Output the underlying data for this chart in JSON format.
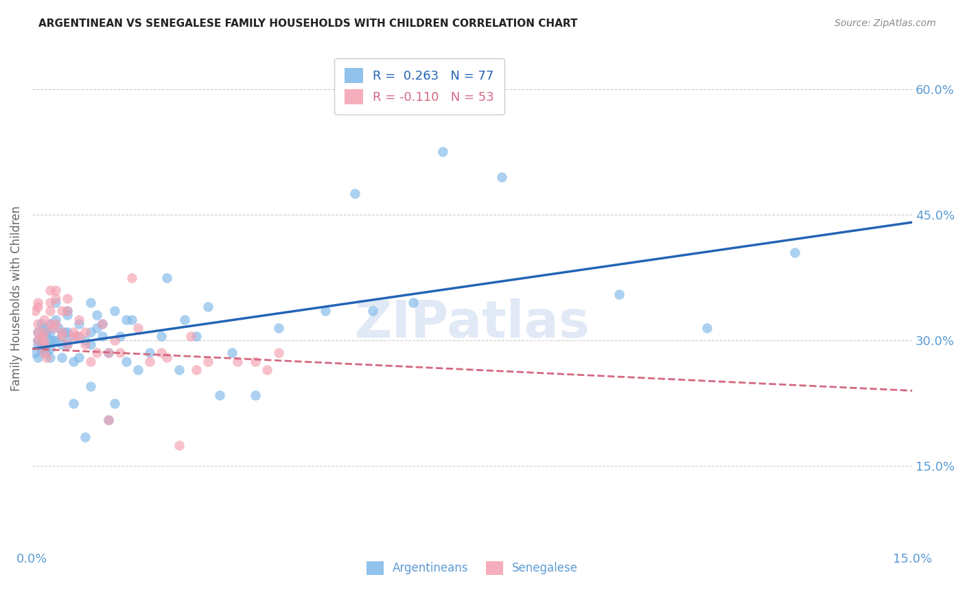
{
  "title": "ARGENTINEAN VS SENEGALESE FAMILY HOUSEHOLDS WITH CHILDREN CORRELATION CHART",
  "source": "Source: ZipAtlas.com",
  "ylabel": "Family Households with Children",
  "right_yticks": [
    "60.0%",
    "45.0%",
    "30.0%",
    "15.0%"
  ],
  "right_ytick_vals": [
    0.6,
    0.45,
    0.3,
    0.15
  ],
  "xmin": 0.0,
  "xmax": 0.15,
  "ymin": 0.05,
  "ymax": 0.65,
  "argentina_color": "#7eb8e8",
  "senegal_color": "#f4a0b0",
  "trend_argentina_color": "#2464b4",
  "trend_senegal_color": "#d46880",
  "argentina_R": 0.263,
  "argentina_N": 77,
  "senegal_R": -0.11,
  "senegal_N": 53,
  "argentina_x": [
    0.0005,
    0.001,
    0.001,
    0.001,
    0.001,
    0.0015,
    0.0015,
    0.002,
    0.002,
    0.002,
    0.002,
    0.002,
    0.0025,
    0.0025,
    0.003,
    0.003,
    0.003,
    0.003,
    0.003,
    0.0035,
    0.004,
    0.004,
    0.004,
    0.0045,
    0.005,
    0.005,
    0.005,
    0.0055,
    0.006,
    0.006,
    0.006,
    0.006,
    0.006,
    0.007,
    0.007,
    0.0075,
    0.008,
    0.008,
    0.009,
    0.009,
    0.01,
    0.01,
    0.01,
    0.01,
    0.011,
    0.011,
    0.012,
    0.012,
    0.013,
    0.013,
    0.014,
    0.014,
    0.015,
    0.016,
    0.016,
    0.017,
    0.018,
    0.02,
    0.022,
    0.023,
    0.025,
    0.026,
    0.028,
    0.03,
    0.032,
    0.034,
    0.038,
    0.042,
    0.05,
    0.055,
    0.058,
    0.065,
    0.07,
    0.08,
    0.1,
    0.115,
    0.13
  ],
  "argentina_y": [
    0.285,
    0.295,
    0.28,
    0.31,
    0.3,
    0.29,
    0.32,
    0.285,
    0.29,
    0.305,
    0.315,
    0.295,
    0.31,
    0.285,
    0.3,
    0.32,
    0.29,
    0.28,
    0.31,
    0.3,
    0.345,
    0.325,
    0.3,
    0.315,
    0.305,
    0.28,
    0.295,
    0.31,
    0.335,
    0.31,
    0.295,
    0.33,
    0.3,
    0.275,
    0.225,
    0.305,
    0.32,
    0.28,
    0.3,
    0.185,
    0.31,
    0.295,
    0.345,
    0.245,
    0.33,
    0.315,
    0.305,
    0.32,
    0.285,
    0.205,
    0.335,
    0.225,
    0.305,
    0.325,
    0.275,
    0.325,
    0.265,
    0.285,
    0.305,
    0.375,
    0.265,
    0.325,
    0.305,
    0.34,
    0.235,
    0.285,
    0.235,
    0.315,
    0.335,
    0.475,
    0.335,
    0.345,
    0.525,
    0.495,
    0.355,
    0.315,
    0.405
  ],
  "senegal_x": [
    0.0005,
    0.001,
    0.001,
    0.001,
    0.001,
    0.001,
    0.0015,
    0.002,
    0.002,
    0.002,
    0.002,
    0.002,
    0.0025,
    0.003,
    0.003,
    0.003,
    0.003,
    0.0035,
    0.004,
    0.004,
    0.004,
    0.005,
    0.005,
    0.005,
    0.006,
    0.006,
    0.006,
    0.007,
    0.007,
    0.008,
    0.008,
    0.009,
    0.009,
    0.01,
    0.011,
    0.012,
    0.013,
    0.013,
    0.014,
    0.015,
    0.017,
    0.018,
    0.02,
    0.022,
    0.023,
    0.025,
    0.027,
    0.028,
    0.03,
    0.035,
    0.038,
    0.04,
    0.042
  ],
  "senegal_y": [
    0.335,
    0.345,
    0.32,
    0.34,
    0.3,
    0.31,
    0.305,
    0.325,
    0.285,
    0.295,
    0.31,
    0.3,
    0.28,
    0.32,
    0.36,
    0.345,
    0.335,
    0.315,
    0.36,
    0.32,
    0.35,
    0.335,
    0.31,
    0.305,
    0.35,
    0.335,
    0.295,
    0.305,
    0.31,
    0.325,
    0.305,
    0.31,
    0.295,
    0.275,
    0.285,
    0.32,
    0.285,
    0.205,
    0.3,
    0.285,
    0.375,
    0.315,
    0.275,
    0.285,
    0.28,
    0.175,
    0.305,
    0.265,
    0.275,
    0.275,
    0.275,
    0.265,
    0.285
  ],
  "watermark": "ZIPatlas",
  "title_fontsize": 11,
  "source_fontsize": 10,
  "background_color": "#ffffff",
  "grid_color": "#cccccc",
  "right_tick_color": "#5b9bd5",
  "bottom_tick_color": "#5b9bd5"
}
